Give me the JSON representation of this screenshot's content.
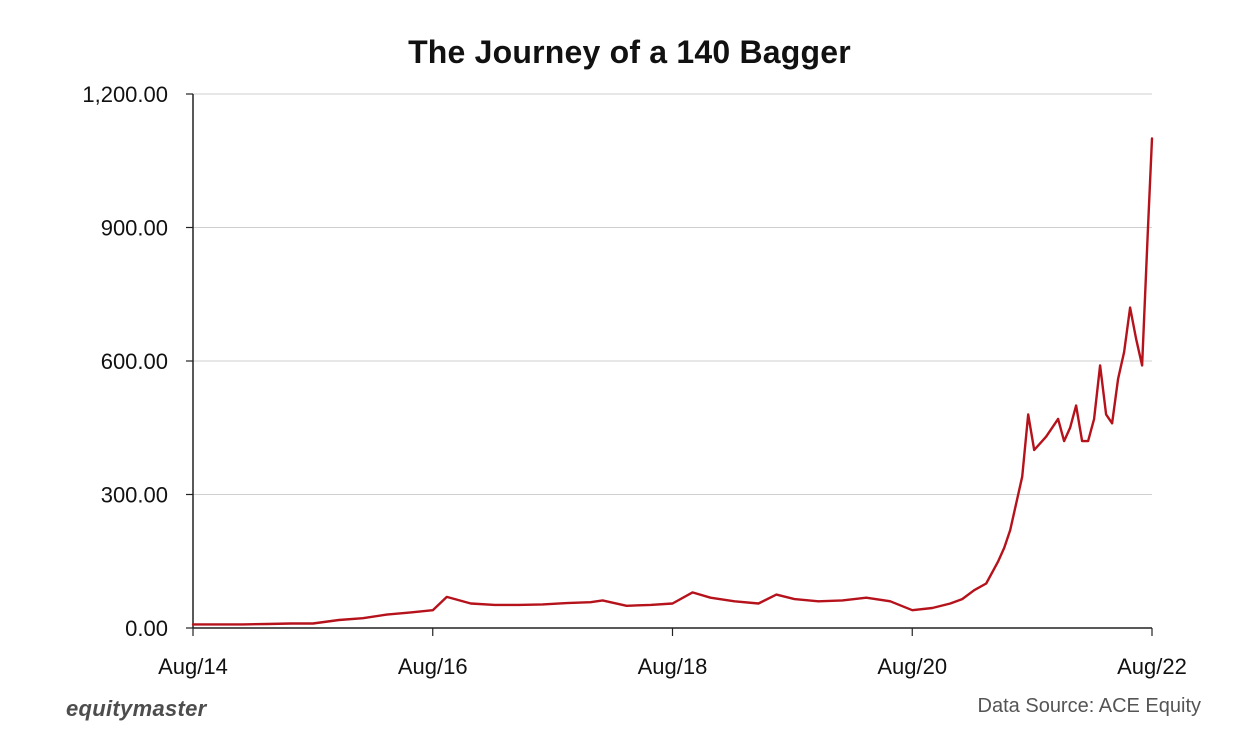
{
  "chart_data": {
    "type": "line",
    "title": "The Journey of a 140 Bagger",
    "xlabel": "",
    "ylabel": "",
    "x_ticks": [
      "Aug/14",
      "Aug/16",
      "Aug/18",
      "Aug/20",
      "Aug/22"
    ],
    "y_ticks": [
      "0.00",
      "300.00",
      "600.00",
      "900.00",
      "1,200.00"
    ],
    "ylim": [
      0,
      1200
    ],
    "xlim": [
      2014.583,
      2022.583
    ],
    "grid": "horizontal",
    "legend": "none",
    "line_color": "#b5121b",
    "series": [
      {
        "x": [
          2014.583,
          2014.8,
          2015.0,
          2015.2,
          2015.4,
          2015.583,
          2015.8,
          2016.0,
          2016.2,
          2016.4,
          2016.583,
          2016.7,
          2016.9,
          2017.1,
          2017.3,
          2017.5,
          2017.7,
          2017.9,
          2018.0,
          2018.2,
          2018.4,
          2018.583,
          2018.75,
          2018.9,
          2019.1,
          2019.3,
          2019.45,
          2019.6,
          2019.8,
          2020.0,
          2020.2,
          2020.4,
          2020.583,
          2020.75,
          2020.9,
          2021.0,
          2021.1,
          2021.2,
          2021.3,
          2021.35,
          2021.4,
          2021.5,
          2021.55,
          2021.6,
          2021.7,
          2021.8,
          2021.85,
          2021.9,
          2021.95,
          2022.0,
          2022.05,
          2022.1,
          2022.15,
          2022.2,
          2022.25,
          2022.3,
          2022.35,
          2022.4,
          2022.45,
          2022.5,
          2022.55,
          2022.583
        ],
        "y": [
          8,
          8,
          8,
          9,
          10,
          10,
          18,
          22,
          30,
          35,
          40,
          70,
          55,
          52,
          52,
          53,
          56,
          58,
          62,
          50,
          52,
          55,
          80,
          68,
          60,
          55,
          75,
          65,
          60,
          62,
          68,
          60,
          40,
          45,
          55,
          65,
          85,
          100,
          150,
          180,
          220,
          340,
          480,
          400,
          430,
          470,
          420,
          450,
          500,
          420,
          420,
          470,
          590,
          480,
          460,
          560,
          620,
          720,
          650,
          590,
          900,
          1100
        ]
      }
    ]
  },
  "footer": {
    "brand": "equitymaster",
    "source": "Data Source:  ACE Equity"
  }
}
